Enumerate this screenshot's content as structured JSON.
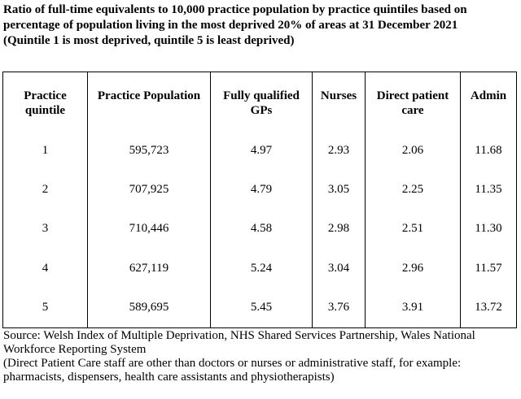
{
  "title": [
    "Ratio of full-time equivalents to 10,000 practice population by practice quintiles based on percentage of population living in the most deprived 20% of areas at 31 December 2021",
    "(Quintile 1 is most deprived, quintile 5 is least deprived)"
  ],
  "table": {
    "headers": [
      "Practice quintile",
      "Practice Population",
      "Fully qualified GPs",
      "Nurses",
      "Direct patient care",
      "Admin"
    ],
    "rows": [
      [
        "1",
        "595,723",
        "4.97",
        "2.93",
        "2.06",
        "11.68"
      ],
      [
        "2",
        "707,925",
        "4.79",
        "3.05",
        "2.25",
        "11.35"
      ],
      [
        "3",
        "710,446",
        "4.58",
        "2.98",
        "2.51",
        "11.30"
      ],
      [
        "4",
        "627,119",
        "5.24",
        "3.04",
        "2.96",
        "11.57"
      ],
      [
        "5",
        "589,695",
        "5.45",
        "3.76",
        "3.91",
        "13.72"
      ]
    ]
  },
  "notes": [
    "Source: Welsh Index of Multiple Deprivation, NHS Shared Services Partnership, Wales National Workforce Reporting System",
    "(Direct Patient Care staff are other than doctors or nurses or administrative staff, for example: pharmacists, dispensers, health care assistants and physiotherapists)"
  ]
}
